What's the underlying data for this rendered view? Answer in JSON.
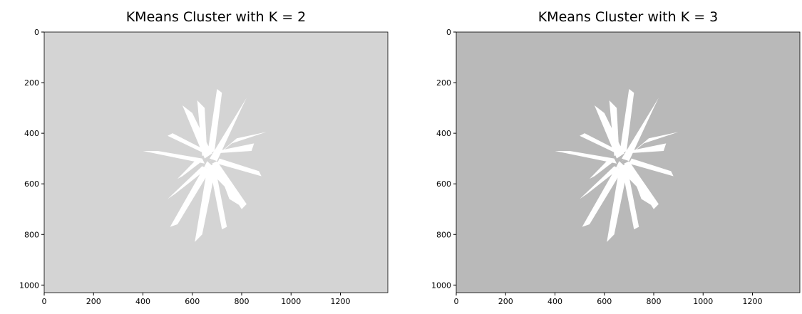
{
  "chart_data": [
    {
      "type": "image",
      "title": "KMeans Cluster with K = 2",
      "color": "#d4d4d4",
      "xlim": [
        0,
        1392
      ],
      "ylim": [
        1030,
        0
      ],
      "xticks": [
        0,
        200,
        400,
        600,
        800,
        1000,
        1200
      ],
      "yticks": [
        0,
        200,
        400,
        600,
        800,
        1000
      ]
    },
    {
      "type": "image",
      "title": "KMeans Cluster with K = 3",
      "color": "#b9b9b9",
      "xlim": [
        0,
        1392
      ],
      "ylim": [
        1030,
        0
      ],
      "xticks": [
        0,
        200,
        400,
        600,
        800,
        1000,
        1200
      ],
      "yticks": [
        0,
        200,
        400,
        600,
        800,
        1000
      ]
    }
  ]
}
